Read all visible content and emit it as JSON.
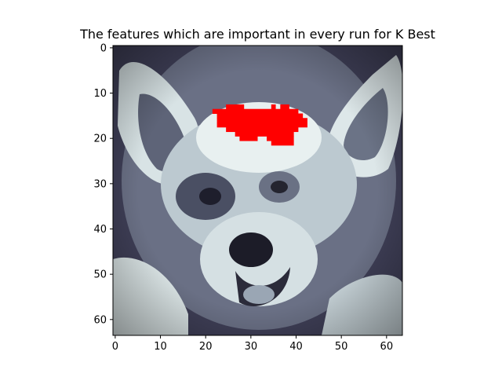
{
  "chart_data": {
    "type": "heatmap",
    "title": "The features which are important in every run for K Best",
    "xlabel": "",
    "ylabel": "",
    "image_size": [
      64,
      64
    ],
    "xlim": [
      -0.5,
      63.5
    ],
    "ylim": [
      63.5,
      -0.5
    ],
    "x_ticks": [
      0,
      10,
      20,
      30,
      40,
      50,
      60
    ],
    "y_ticks": [
      0,
      10,
      20,
      30,
      40,
      50,
      60
    ],
    "colormap": "bone",
    "image_subject": "grayscale photo of a dog's face",
    "highlight_color": "#ff0000",
    "highlighted_region_rows": [
      {
        "row": 13,
        "x_start": 25,
        "x_end": 28
      },
      {
        "row": 13,
        "x_start": 35,
        "x_end": 35
      },
      {
        "row": 13,
        "x_start": 37,
        "x_end": 38
      },
      {
        "row": 14,
        "x_start": 22,
        "x_end": 40
      },
      {
        "row": 15,
        "x_start": 23,
        "x_end": 41
      },
      {
        "row": 16,
        "x_start": 23,
        "x_end": 42
      },
      {
        "row": 17,
        "x_start": 23,
        "x_end": 42
      },
      {
        "row": 18,
        "x_start": 25,
        "x_end": 40
      },
      {
        "row": 19,
        "x_start": 27,
        "x_end": 39
      },
      {
        "row": 20,
        "x_start": 28,
        "x_end": 31
      },
      {
        "row": 20,
        "x_start": 34,
        "x_end": 39
      },
      {
        "row": 21,
        "x_start": 35,
        "x_end": 39
      }
    ]
  }
}
